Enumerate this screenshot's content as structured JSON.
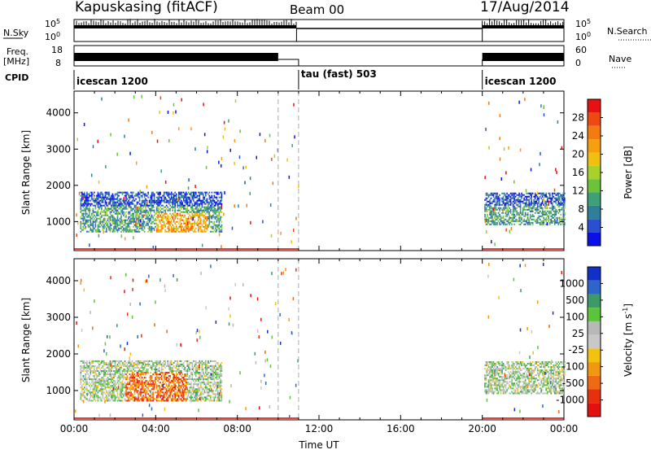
{
  "header": {
    "station": "Kapuskasing (fitACF)",
    "beam": "Beam 00",
    "date": "17/Aug/2014"
  },
  "strip_labels": {
    "nsky": "N.Sky",
    "nsky_ticks": [
      "10^5",
      "10^0"
    ],
    "freq": "Freq.",
    "freq_unit": "[MHz]",
    "freq_ticks": [
      "18",
      "8"
    ],
    "cpid": "CPID",
    "nsearch": "N.Search",
    "nsearch_ticks": [
      "10^5",
      "10^0"
    ],
    "nave": "Nave",
    "nave_ticks": [
      "60",
      "0"
    ]
  },
  "cpid_segments": [
    {
      "label": "icescan 1200",
      "start_h": 0,
      "end_h": 11
    },
    {
      "label": "tau (fast) 503",
      "start_h": 11,
      "end_h": 20
    },
    {
      "label": "icescan 1200",
      "start_h": 20,
      "end_h": 24
    }
  ],
  "nsky_segments": [
    {
      "start_h": 0,
      "end_h": 10.9,
      "level": "high"
    },
    {
      "start_h": 10.9,
      "end_h": 20,
      "level": "low"
    },
    {
      "start_h": 20,
      "end_h": 24,
      "level": "high"
    }
  ],
  "chart_data": [
    {
      "type": "heatmap",
      "quantity": "Power",
      "xlabel": "",
      "ylabel": "Slant Range [km]",
      "xlim": [
        0,
        24
      ],
      "ylim": [
        200,
        4600
      ],
      "yticks": [
        1000,
        2000,
        3000,
        4000
      ],
      "colorbar": {
        "label": "Power [dB]",
        "ticks": [
          "4",
          "8",
          "12",
          "16",
          "20",
          "24",
          "28"
        ],
        "colors": [
          "#0a10e6",
          "#2a4fd0",
          "#2f7f9a",
          "#3ea07a",
          "#6cc23a",
          "#a8d22a",
          "#f0c010",
          "#f6a010",
          "#f47b10",
          "#ee4a10",
          "#e81010"
        ]
      },
      "echo_regions": [
        {
          "t0": 0.3,
          "t1": 7.2,
          "r0": 700,
          "r1": 1800,
          "value": "mixed"
        },
        {
          "t0": 20.1,
          "t1": 24,
          "r0": 900,
          "r1": 1800,
          "value": "mixed"
        }
      ]
    },
    {
      "type": "heatmap",
      "quantity": "Velocity",
      "xlabel": "Time UT",
      "ylabel": "Slant Range [km]",
      "xlim": [
        0,
        24
      ],
      "ylim": [
        200,
        4600
      ],
      "yticks": [
        1000,
        2000,
        3000,
        4000
      ],
      "xticks": [
        "00:00",
        "04:00",
        "08:00",
        "12:00",
        "16:00",
        "20:00",
        "00:00"
      ],
      "colorbar": {
        "label": "Velocity [m s^-1]",
        "ticks": [
          "1000",
          "500",
          "100",
          "25",
          "-25",
          "-100",
          "-500",
          "-1000"
        ],
        "colors": [
          "#1030c8",
          "#2f65c8",
          "#3a9a6a",
          "#5cc43a",
          "#b8b8b8",
          "#c8c8c8",
          "#f3c20e",
          "#f29810",
          "#ef6a10",
          "#e83010",
          "#e41010"
        ]
      },
      "echo_regions": [
        {
          "t0": 0.3,
          "t1": 7.2,
          "r0": 700,
          "r1": 1800,
          "value": "mixed"
        },
        {
          "t0": 20.1,
          "t1": 24,
          "r0": 900,
          "r1": 1800,
          "value": "mixed"
        }
      ]
    }
  ]
}
